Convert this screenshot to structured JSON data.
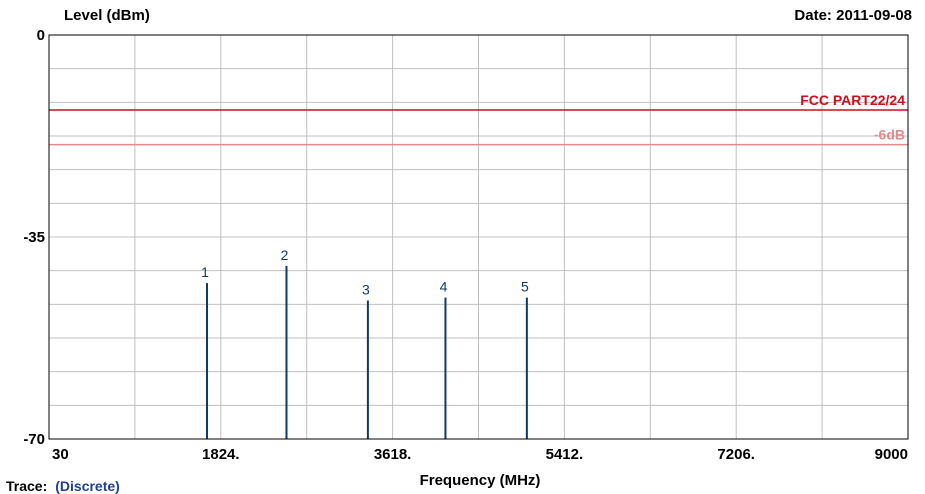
{
  "chart_data": {
    "type": "bar",
    "ylabel": "Level (dBm)",
    "xlabel": "Frequency (MHz)",
    "date_label": "Date: 2011-09-08",
    "xlim": [
      30,
      9000
    ],
    "ylim": [
      -70,
      0
    ],
    "x_ticks": [
      "30",
      "1824.",
      "3618.",
      "5412.",
      "7206.",
      "9000"
    ],
    "y_ticks": [
      "0",
      "-35",
      "-70"
    ],
    "grid": true,
    "series": [
      {
        "marker": "1",
        "x": 1680,
        "y": -43
      },
      {
        "marker": "2",
        "x": 2510,
        "y": -40
      },
      {
        "marker": "3",
        "x": 3360,
        "y": -46
      },
      {
        "marker": "4",
        "x": 4170,
        "y": -45.5
      },
      {
        "marker": "5",
        "x": 5020,
        "y": -45.5
      }
    ],
    "limit_lines": [
      {
        "label": "FCC PART22/24",
        "y": -13,
        "color": "#c8101e"
      },
      {
        "label": "-6dB",
        "y": -19,
        "color": "#e58a8a"
      }
    ],
    "trace_label": "Trace:",
    "trace_value": "(Discrete)",
    "colors": {
      "bar": "#0e3a6a",
      "grid": "#c0c0c0",
      "frame": "#000000"
    }
  }
}
